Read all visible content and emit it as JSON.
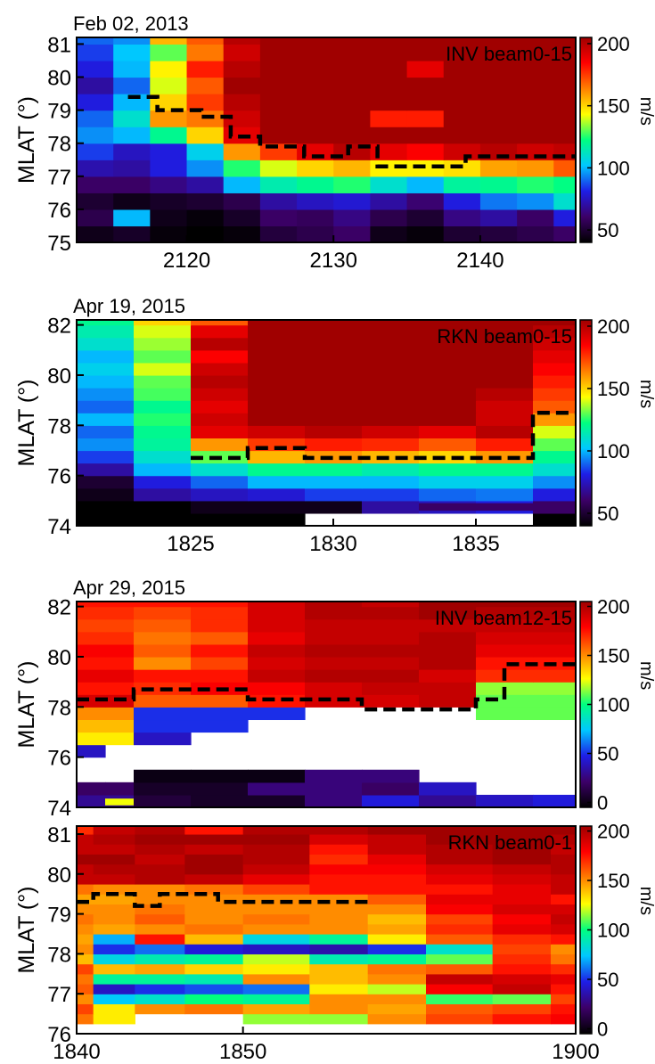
{
  "figure": {
    "colormap": [
      "#000000",
      "#3c0068",
      "#1e1ee6",
      "#00c8ff",
      "#00ff80",
      "#ffff00",
      "#ff8000",
      "#ff0000",
      "#a00000"
    ]
  },
  "chart_data": [
    {
      "type": "heatmap",
      "title": "Feb 02, 2013",
      "annotation": "INV beam0-15",
      "ylabel": "MLAT (°)",
      "colorbar_label": "m/s",
      "colorbar_range": [
        40,
        205
      ],
      "colorbar_ticks": [
        "50",
        "100",
        "150",
        "200"
      ],
      "xlim": [
        2112.5,
        2146.5
      ],
      "ylim": [
        75,
        81.2
      ],
      "x_ticks": [
        "2120",
        "2130",
        "2140"
      ],
      "y_ticks": [
        "75",
        "76",
        "77",
        "78",
        "79",
        "80",
        "81"
      ],
      "x_edges": [
        2112.5,
        2115,
        2117.5,
        2120,
        2122.5,
        2125,
        2127.5,
        2130,
        2132.5,
        2135,
        2137.5,
        2140,
        2142.5,
        2145,
        2146.5
      ],
      "y_edges": [
        75,
        75.5,
        76,
        76.5,
        77,
        77.5,
        78,
        78.5,
        79,
        79.5,
        80,
        80.5,
        81,
        81.2
      ],
      "z": [
        [
          45,
          48,
          42,
          40,
          42,
          52,
          55,
          60,
          45,
          42,
          50,
          52,
          55,
          60
        ],
        [
          55,
          100,
          45,
          42,
          48,
          60,
          58,
          65,
          55,
          50,
          65,
          70,
          60,
          80
        ],
        [
          50,
          45,
          48,
          50,
          55,
          70,
          75,
          78,
          70,
          62,
          80,
          92,
          95,
          110
        ],
        [
          60,
          60,
          65,
          70,
          100,
          115,
          120,
          125,
          110,
          100,
          118,
          120,
          125,
          122
        ],
        [
          72,
          70,
          80,
          95,
          125,
          140,
          150,
          155,
          145,
          145,
          148,
          158,
          160,
          170
        ],
        [
          85,
          75,
          80,
          105,
          160,
          175,
          190,
          200,
          190,
          185,
          195,
          200,
          195,
          198
        ],
        [
          95,
          100,
          120,
          150,
          190,
          205,
          205,
          205,
          205,
          205,
          205,
          205,
          205,
          205
        ],
        [
          90,
          110,
          160,
          165,
          195,
          205,
          205,
          205,
          180,
          180,
          205,
          205,
          205,
          205
        ],
        [
          80,
          100,
          150,
          175,
          200,
          205,
          205,
          205,
          205,
          205,
          205,
          205,
          205,
          205
        ],
        [
          70,
          90,
          140,
          170,
          205,
          205,
          205,
          205,
          205,
          205,
          205,
          205,
          205,
          205
        ],
        [
          80,
          100,
          145,
          180,
          200,
          205,
          205,
          205,
          205,
          190,
          205,
          205,
          205,
          205
        ],
        [
          85,
          102,
          130,
          165,
          195,
          205,
          205,
          205,
          205,
          205,
          205,
          205,
          205,
          205
        ],
        [
          90,
          95,
          155,
          170,
          200,
          205,
          205,
          205,
          205,
          205,
          205,
          205,
          205,
          205
        ]
      ],
      "boundary": {
        "x": [
          2116,
          2118,
          2118,
          2121,
          2121,
          2123,
          2123,
          2125,
          2125,
          2128,
          2128,
          2131,
          2131,
          2133,
          2133,
          2139,
          2139,
          2146.5
        ],
        "y": [
          79.4,
          79.4,
          79.0,
          79.0,
          78.8,
          78.8,
          78.2,
          78.2,
          77.9,
          77.9,
          77.6,
          77.6,
          77.9,
          77.9,
          77.3,
          77.3,
          77.6,
          77.6
        ]
      }
    },
    {
      "type": "heatmap",
      "title": "Apr 19, 2015",
      "annotation": "RKN beam0-15",
      "ylabel": "MLAT (°)",
      "colorbar_label": "m/s",
      "colorbar_range": [
        40,
        205
      ],
      "colorbar_ticks": [
        "50",
        "100",
        "150",
        "200"
      ],
      "xlim": [
        1821,
        1838.5
      ],
      "ylim": [
        74,
        82.2
      ],
      "x_ticks": [
        "1825",
        "1830",
        "1835"
      ],
      "y_ticks": [
        "74",
        "76",
        "78",
        "80",
        "82"
      ],
      "x_edges": [
        1821,
        1823,
        1825,
        1827,
        1829,
        1831,
        1833,
        1835,
        1837,
        1838.5
      ],
      "y_edges": [
        74,
        74.5,
        75,
        75.5,
        76,
        76.5,
        77,
        77.5,
        78,
        78.5,
        79,
        79.5,
        80,
        80.5,
        81,
        81.5,
        82,
        82.2
      ],
      "z": [
        [
          40,
          40,
          40,
          40,
          null,
          null,
          null,
          null,
          40
        ],
        [
          40,
          40,
          45,
          45,
          45,
          70,
          75,
          80,
          60
        ],
        [
          45,
          70,
          75,
          78,
          85,
          85,
          90,
          92,
          80
        ],
        [
          50,
          80,
          90,
          100,
          100,
          100,
          105,
          105,
          95
        ],
        [
          70,
          100,
          110,
          120,
          120,
          115,
          120,
          120,
          110
        ],
        [
          85,
          110,
          130,
          155,
          160,
          155,
          150,
          160,
          120
        ],
        [
          95,
          118,
          160,
          175,
          180,
          178,
          170,
          180,
          130
        ],
        [
          90,
          120,
          190,
          195,
          200,
          195,
          190,
          200,
          140
        ],
        [
          100,
          125,
          195,
          205,
          205,
          205,
          205,
          195,
          160
        ],
        [
          90,
          120,
          190,
          205,
          205,
          205,
          205,
          195,
          170
        ],
        [
          95,
          128,
          195,
          205,
          205,
          205,
          205,
          200,
          175
        ],
        [
          100,
          130,
          200,
          205,
          205,
          205,
          205,
          205,
          180
        ],
        [
          105,
          140,
          195,
          205,
          205,
          205,
          205,
          205,
          185
        ],
        [
          100,
          130,
          185,
          205,
          205,
          205,
          205,
          205,
          190
        ],
        [
          110,
          135,
          200,
          205,
          205,
          205,
          205,
          205,
          195
        ],
        [
          115,
          140,
          190,
          205,
          205,
          205,
          205,
          205,
          200
        ],
        [
          120,
          150,
          170,
          205,
          205,
          205,
          205,
          205,
          205
        ]
      ],
      "bars": [
        {
          "x": [
            1833,
            1837
          ],
          "y": [
            74.6,
            74.9
          ],
          "value": 60
        }
      ],
      "boundary": {
        "x": [
          1825,
          1827,
          1827,
          1829,
          1829,
          1837,
          1837,
          1838.5
        ],
        "y": [
          76.7,
          76.7,
          77.1,
          77.1,
          76.7,
          76.7,
          78.5,
          78.5
        ]
      }
    },
    {
      "type": "heatmap",
      "title": "Apr 29, 2015",
      "annotation": "INV beam12-15",
      "ylabel": "MLAT (°)",
      "colorbar_label": "m/s",
      "colorbar_range": [
        -5,
        205
      ],
      "colorbar_ticks": [
        "0",
        "50",
        "100",
        "150",
        "200"
      ],
      "xlim": [
        1821,
        1838.5
      ],
      "ylim": [
        74,
        82.2
      ],
      "x_ticks": [],
      "y_ticks": [
        "74",
        "76",
        "78",
        "80",
        "82"
      ],
      "x_edges": [
        1821,
        1822,
        1823,
        1825,
        1827,
        1829,
        1831,
        1833,
        1835,
        1837,
        1838.5
      ],
      "y_edges": [
        74,
        74.5,
        75,
        75.5,
        76,
        76.5,
        77,
        77.5,
        78,
        78.5,
        79,
        79.5,
        80,
        80.5,
        81,
        81.5,
        82,
        82.2
      ],
      "z": [
        [
          30,
          30,
          10,
          5,
          5,
          25,
          45,
          30,
          40,
          45
        ],
        [
          20,
          20,
          5,
          5,
          25,
          25,
          20,
          40,
          null,
          null
        ],
        [
          null,
          null,
          0,
          0,
          0,
          25,
          25,
          null,
          null,
          null
        ],
        [
          null,
          null,
          null,
          null,
          null,
          null,
          null,
          null,
          null,
          null
        ],
        [
          40,
          null,
          null,
          null,
          null,
          null,
          null,
          null,
          null,
          null
        ],
        [
          130,
          130,
          40,
          null,
          null,
          null,
          null,
          null,
          null,
          null
        ],
        [
          140,
          140,
          50,
          50,
          null,
          null,
          null,
          null,
          null,
          null
        ],
        [
          150,
          150,
          50,
          50,
          50,
          null,
          null,
          null,
          110,
          110
        ],
        [
          190,
          190,
          160,
          160,
          175,
          190,
          190,
          195,
          110,
          110
        ],
        [
          175,
          175,
          170,
          180,
          180,
          190,
          195,
          195,
          115,
          115
        ],
        [
          185,
          185,
          175,
          175,
          195,
          200,
          200,
          190,
          170,
          170
        ],
        [
          175,
          175,
          150,
          165,
          190,
          195,
          195,
          200,
          175,
          175
        ],
        [
          180,
          180,
          160,
          175,
          195,
          200,
          200,
          200,
          185,
          185
        ],
        [
          170,
          170,
          155,
          160,
          185,
          195,
          195,
          200,
          190,
          190
        ],
        [
          165,
          165,
          160,
          170,
          190,
          195,
          195,
          195,
          195,
          195
        ],
        [
          170,
          170,
          165,
          170,
          190,
          200,
          200,
          205,
          200,
          200
        ],
        [
          175,
          175,
          175,
          175,
          190,
          200,
          195,
          205,
          205,
          205
        ]
      ],
      "bars": [
        {
          "x": [
            1822,
            1823
          ],
          "y": [
            74.08,
            74.35
          ],
          "value": 125
        }
      ],
      "boundary": {
        "x": [
          1821,
          1823,
          1823,
          1827,
          1827,
          1831,
          1831,
          1835,
          1835,
          1836,
          1836,
          1838.5
        ],
        "y": [
          78.3,
          78.3,
          78.7,
          78.7,
          78.3,
          78.3,
          77.9,
          77.9,
          78.3,
          78.3,
          79.7,
          79.7
        ]
      }
    },
    {
      "type": "heatmap",
      "title": "",
      "annotation": "RKN beam0-1",
      "ylabel": "MLAT (°)",
      "colorbar_label": "m/s",
      "colorbar_range": [
        -5,
        205
      ],
      "colorbar_ticks": [
        "0",
        "50",
        "100",
        "150",
        "200"
      ],
      "xlim": [
        1840,
        1900
      ],
      "ylim": [
        76,
        81.2
      ],
      "x_ticks": [
        "1840",
        "1850",
        "1900"
      ],
      "x_tick_positions": [
        1840,
        1860,
        1900
      ],
      "y_ticks": [
        "76",
        "77",
        "78",
        "79",
        "80",
        "81"
      ],
      "x_edges": [
        1840,
        1842,
        1847,
        1853,
        1860,
        1868,
        1875,
        1882,
        1890,
        1897,
        1900
      ],
      "y_edges": [
        76,
        76.25,
        76.5,
        76.75,
        77,
        77.25,
        77.5,
        77.75,
        78,
        78.25,
        78.5,
        78.75,
        79,
        79.25,
        79.5,
        79.75,
        80,
        80.25,
        80.5,
        80.75,
        81,
        81.2
      ],
      "z": [
        [
          null,
          null,
          null,
          null,
          null,
          null,
          null,
          null,
          null,
          null
        ],
        [
          155,
          130,
          null,
          null,
          115,
          115,
          150,
          165,
          175,
          180
        ],
        [
          165,
          130,
          150,
          155,
          145,
          150,
          145,
          160,
          165,
          175
        ],
        [
          150,
          75,
          85,
          100,
          95,
          150,
          150,
          105,
          110,
          165
        ],
        [
          160,
          40,
          50,
          55,
          60,
          130,
          120,
          180,
          195,
          175
        ],
        [
          155,
          95,
          95,
          90,
          150,
          140,
          150,
          195,
          190,
          185
        ],
        [
          165,
          140,
          145,
          135,
          130,
          140,
          155,
          160,
          175,
          170
        ],
        [
          140,
          80,
          90,
          95,
          120,
          90,
          95,
          110,
          170,
          155
        ],
        [
          150,
          50,
          60,
          45,
          40,
          35,
          50,
          85,
          165,
          150
        ],
        [
          145,
          70,
          175,
          140,
          80,
          95,
          130,
          160,
          170,
          175
        ],
        [
          150,
          145,
          150,
          155,
          150,
          150,
          145,
          170,
          185,
          190
        ],
        [
          155,
          150,
          160,
          150,
          155,
          150,
          140,
          165,
          180,
          195
        ],
        [
          150,
          150,
          155,
          150,
          150,
          150,
          150,
          180,
          190,
          190
        ],
        [
          145,
          145,
          150,
          150,
          150,
          150,
          160,
          185,
          185,
          175
        ],
        [
          155,
          150,
          150,
          155,
          165,
          175,
          175,
          175,
          185,
          195
        ],
        [
          195,
          195,
          200,
          195,
          185,
          175,
          175,
          185,
          190,
          195
        ],
        [
          195,
          200,
          200,
          205,
          195,
          180,
          180,
          190,
          195,
          200
        ],
        [
          205,
          205,
          195,
          205,
          200,
          170,
          185,
          200,
          205,
          200
        ],
        [
          195,
          195,
          200,
          195,
          200,
          175,
          195,
          200,
          205,
          195
        ],
        [
          195,
          200,
          205,
          205,
          205,
          190,
          195,
          205,
          205,
          200
        ],
        [
          170,
          195,
          200,
          175,
          200,
          200,
          205,
          205,
          205,
          205
        ]
      ],
      "boundary": {
        "x": [
          1840,
          1842,
          1842,
          1847,
          1847,
          1850,
          1850,
          1853,
          1853,
          1857,
          1857,
          1875
        ],
        "y": [
          79.3,
          79.3,
          79.5,
          79.5,
          79.2,
          79.2,
          79.5,
          79.5,
          79.5,
          79.5,
          79.3,
          79.3
        ]
      }
    }
  ]
}
